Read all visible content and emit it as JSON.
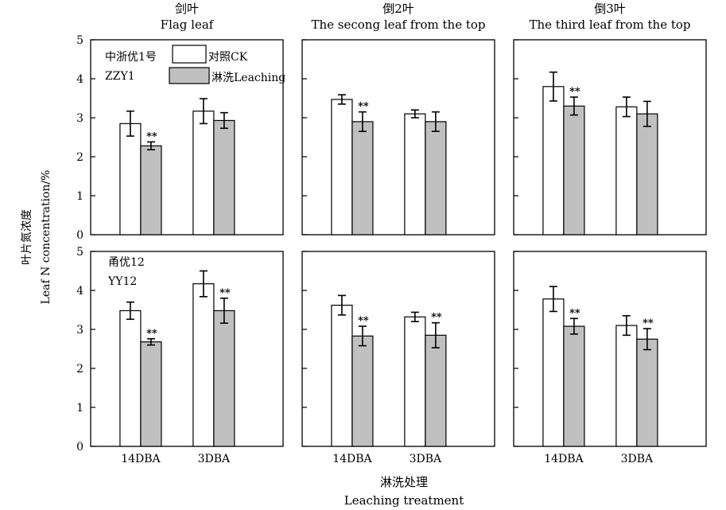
{
  "figure": {
    "y_label_cn": "叶片氮浓度",
    "y_label_en": "Leaf N concentration/%",
    "x_label_cn": "淋洗处理",
    "x_label_en": "Leaching treatment"
  },
  "columns": [
    {
      "title_cn": "剑叶",
      "title_en": "Flag leaf"
    },
    {
      "title_cn": "倒2叶",
      "title_en": "The secong leaf from the top"
    },
    {
      "title_cn": "倒3叶",
      "title_en": "The third leaf from the top"
    }
  ],
  "rows": [
    {
      "cultivar_cn": "中浙优1号",
      "cultivar_en": "ZZY1"
    },
    {
      "cultivar_cn": "甬优12",
      "cultivar_en": "YY12"
    }
  ],
  "legend": {
    "items": [
      {
        "label": "对照CK",
        "color": "#ffffff"
      },
      {
        "label": "淋洗Leaching",
        "color": "#c0c0c0"
      }
    ]
  },
  "significance_mark": "**",
  "chart_data": [
    {
      "type": "bar",
      "row": 0,
      "col": 0,
      "categories": [
        "14DBA",
        "3DBA"
      ],
      "ylim": [
        0,
        5
      ],
      "yticks": [
        0,
        1,
        2,
        3,
        4,
        5
      ],
      "series": [
        {
          "name": "对照CK",
          "values": [
            2.85,
            3.17
          ],
          "errors": [
            0.32,
            0.32
          ]
        },
        {
          "name": "淋洗Leaching",
          "values": [
            2.28,
            2.93
          ],
          "errors": [
            0.1,
            0.2
          ],
          "significant": [
            true,
            false
          ]
        }
      ]
    },
    {
      "type": "bar",
      "row": 0,
      "col": 1,
      "categories": [
        "14DBA",
        "3DBA"
      ],
      "ylim": [
        0,
        5
      ],
      "yticks": [
        0,
        1,
        2,
        3,
        4,
        5
      ],
      "series": [
        {
          "name": "对照CK",
          "values": [
            3.47,
            3.1
          ],
          "errors": [
            0.12,
            0.1
          ]
        },
        {
          "name": "淋洗Leaching",
          "values": [
            2.9,
            2.9
          ],
          "errors": [
            0.25,
            0.25
          ],
          "significant": [
            true,
            false
          ]
        }
      ]
    },
    {
      "type": "bar",
      "row": 0,
      "col": 2,
      "categories": [
        "14DBA",
        "3DBA"
      ],
      "ylim": [
        0,
        5
      ],
      "yticks": [
        0,
        1,
        2,
        3,
        4,
        5
      ],
      "series": [
        {
          "name": "对照CK",
          "values": [
            3.8,
            3.28
          ],
          "errors": [
            0.37,
            0.25
          ]
        },
        {
          "name": "淋洗Leaching",
          "values": [
            3.3,
            3.1
          ],
          "errors": [
            0.23,
            0.32
          ],
          "significant": [
            true,
            false
          ]
        }
      ]
    },
    {
      "type": "bar",
      "row": 1,
      "col": 0,
      "categories": [
        "14DBA",
        "3DBA"
      ],
      "ylim": [
        0,
        5
      ],
      "yticks": [
        0,
        1,
        2,
        3,
        4,
        5
      ],
      "series": [
        {
          "name": "对照CK",
          "values": [
            3.48,
            4.17
          ],
          "errors": [
            0.22,
            0.33
          ]
        },
        {
          "name": "淋洗Leaching",
          "values": [
            2.68,
            3.48
          ],
          "errors": [
            0.08,
            0.32
          ],
          "significant": [
            true,
            true
          ]
        }
      ]
    },
    {
      "type": "bar",
      "row": 1,
      "col": 1,
      "categories": [
        "14DBA",
        "3DBA"
      ],
      "ylim": [
        0,
        5
      ],
      "yticks": [
        0,
        1,
        2,
        3,
        4,
        5
      ],
      "series": [
        {
          "name": "对照CK",
          "values": [
            3.62,
            3.32
          ],
          "errors": [
            0.25,
            0.12
          ]
        },
        {
          "name": "淋洗Leaching",
          "values": [
            2.83,
            2.85
          ],
          "errors": [
            0.25,
            0.32
          ],
          "significant": [
            true,
            true
          ]
        }
      ]
    },
    {
      "type": "bar",
      "row": 1,
      "col": 2,
      "categories": [
        "14DBA",
        "3DBA"
      ],
      "ylim": [
        0,
        5
      ],
      "yticks": [
        0,
        1,
        2,
        3,
        4,
        5
      ],
      "series": [
        {
          "name": "对照CK",
          "values": [
            3.78,
            3.1
          ],
          "errors": [
            0.32,
            0.25
          ]
        },
        {
          "name": "淋洗Leaching",
          "values": [
            3.08,
            2.75
          ],
          "errors": [
            0.2,
            0.27
          ],
          "significant": [
            true,
            true
          ]
        }
      ]
    }
  ]
}
